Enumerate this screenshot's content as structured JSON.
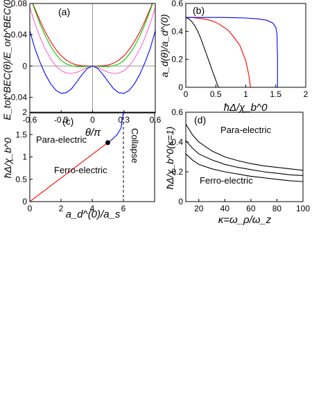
{
  "chart_data": [
    {
      "id": "a",
      "type": "line",
      "panel_label": "(a)",
      "xlabel": "θ/π",
      "ylabel": "E_tot^BEC(θ)/E_orb^BEC(0)",
      "xlim": [
        -0.6,
        0.6
      ],
      "ylim": [
        -0.06,
        0.08
      ],
      "x_ticks": [
        -0.6,
        -0.3,
        0,
        0.3,
        0.6
      ],
      "x_tick_labels": [
        "-0.6",
        "-0.3",
        "0",
        "0.3",
        "0.6"
      ],
      "y_ticks": [
        -0.04,
        0,
        0.04,
        0.08
      ],
      "y_tick_labels": [
        "-0.04",
        "0",
        "0.04",
        "0.08"
      ],
      "reference_lines": {
        "x": 0,
        "y": 0
      },
      "series": [
        {
          "color": "#ff0000",
          "x": [
            -0.6,
            -0.55,
            -0.5,
            -0.45,
            -0.4,
            -0.35,
            -0.3,
            -0.25,
            -0.2,
            -0.15,
            -0.1,
            -0.05,
            0,
            0.05,
            0.1,
            0.15,
            0.2,
            0.25,
            0.3,
            0.35,
            0.4,
            0.45,
            0.5,
            0.55,
            0.6
          ],
          "y": [
            0.09,
            0.073,
            0.057,
            0.043,
            0.031,
            0.021,
            0.013,
            0.0075,
            0.0035,
            0.0012,
            0.0003,
            5e-05,
            0,
            5e-05,
            0.0003,
            0.0012,
            0.0035,
            0.0075,
            0.013,
            0.021,
            0.031,
            0.043,
            0.057,
            0.073,
            0.09
          ]
        },
        {
          "color": "#00cc00",
          "x": [
            -0.6,
            -0.55,
            -0.5,
            -0.45,
            -0.4,
            -0.35,
            -0.3,
            -0.25,
            -0.2,
            -0.15,
            -0.1,
            -0.05,
            0,
            0.05,
            0.1,
            0.15,
            0.2,
            0.25,
            0.3,
            0.35,
            0.4,
            0.45,
            0.5,
            0.55,
            0.6
          ],
          "y": [
            0.09,
            0.071,
            0.053,
            0.038,
            0.025,
            0.015,
            0.007,
            0.0025,
            0.0003,
            -0.0008,
            -0.0009,
            -0.0003,
            0,
            -0.0003,
            -0.0009,
            -0.0008,
            0.0003,
            0.0025,
            0.007,
            0.015,
            0.025,
            0.038,
            0.053,
            0.071,
            0.09
          ]
        },
        {
          "color": "#ff66cc",
          "x": [
            -0.6,
            -0.55,
            -0.5,
            -0.45,
            -0.4,
            -0.35,
            -0.3,
            -0.25,
            -0.2,
            -0.15,
            -0.1,
            -0.05,
            0,
            0.05,
            0.1,
            0.15,
            0.2,
            0.25,
            0.3,
            0.35,
            0.4,
            0.45,
            0.5,
            0.55,
            0.6
          ],
          "y": [
            0.075,
            0.054,
            0.036,
            0.021,
            0.009,
            0.0,
            -0.006,
            -0.009,
            -0.0095,
            -0.008,
            -0.005,
            -0.0015,
            0,
            -0.0015,
            -0.005,
            -0.008,
            -0.0095,
            -0.009,
            -0.006,
            0.0,
            0.009,
            0.021,
            0.036,
            0.054,
            0.075
          ]
        },
        {
          "color": "#0000ff",
          "x": [
            -0.6,
            -0.55,
            -0.5,
            -0.45,
            -0.4,
            -0.35,
            -0.3,
            -0.25,
            -0.2,
            -0.15,
            -0.1,
            -0.05,
            0,
            0.05,
            0.1,
            0.15,
            0.2,
            0.25,
            0.3,
            0.35,
            0.4,
            0.45,
            0.5,
            0.55,
            0.6
          ],
          "y": [
            0.045,
            0.022,
            0.004,
            -0.011,
            -0.023,
            -0.031,
            -0.035,
            -0.034,
            -0.029,
            -0.02,
            -0.011,
            -0.003,
            0,
            -0.003,
            -0.011,
            -0.02,
            -0.029,
            -0.034,
            -0.035,
            -0.031,
            -0.023,
            -0.011,
            0.004,
            0.022,
            0.045
          ]
        }
      ]
    },
    {
      "id": "b",
      "type": "line",
      "panel_label": "(b)",
      "xlabel": "ħΔ/χ_b^0",
      "ylabel": "a_d(θ)/a_d^(0)",
      "xlim": [
        0,
        2
      ],
      "ylim": [
        0,
        0.6
      ],
      "x_ticks": [
        0,
        0.5,
        1,
        1.5,
        2
      ],
      "x_tick_labels": [
        "0",
        "0.5",
        "1",
        "1.5",
        "2"
      ],
      "y_ticks": [
        0,
        0.2,
        0.4,
        0.6
      ],
      "y_tick_labels": [
        "0",
        "0.2",
        "0.4",
        "0.6"
      ],
      "series": [
        {
          "color": "#000000",
          "x": [
            0,
            0.05,
            0.1,
            0.15,
            0.2,
            0.25,
            0.3,
            0.35,
            0.4,
            0.45,
            0.5,
            0.53,
            0.55,
            0.55
          ],
          "y": [
            0.5,
            0.49,
            0.47,
            0.44,
            0.4,
            0.35,
            0.29,
            0.23,
            0.17,
            0.11,
            0.05,
            0.015,
            0,
            0
          ]
        },
        {
          "color": "#ff0000",
          "x": [
            0,
            0.1,
            0.2,
            0.3,
            0.4,
            0.5,
            0.6,
            0.7,
            0.8,
            0.9,
            1.0,
            1.05,
            1.08
          ],
          "y": [
            0.5,
            0.5,
            0.495,
            0.49,
            0.48,
            0.465,
            0.44,
            0.41,
            0.36,
            0.3,
            0.19,
            0.09,
            0
          ]
        },
        {
          "color": "#0000ff",
          "x": [
            0,
            0.2,
            0.4,
            0.6,
            0.8,
            1.0,
            1.2,
            1.35,
            1.45,
            1.5,
            1.52,
            1.53,
            1.53
          ],
          "y": [
            0.5,
            0.5,
            0.5,
            0.5,
            0.498,
            0.496,
            0.49,
            0.48,
            0.46,
            0.43,
            0.38,
            0.2,
            0
          ]
        }
      ]
    },
    {
      "id": "c",
      "type": "line",
      "panel_label": "(c)",
      "xlabel": "a_d^(0)/a_s",
      "ylabel": "ħΔ/χ_b^0",
      "xlim": [
        0,
        8
      ],
      "ylim": [
        0,
        2
      ],
      "x_ticks": [
        0,
        2,
        4,
        6
      ],
      "x_tick_labels": [
        "0",
        "2",
        "4",
        "6"
      ],
      "y_ticks": [
        0,
        0.5,
        1,
        1.5,
        2
      ],
      "y_tick_labels": [
        "0",
        "0.5",
        "1",
        "1.5",
        "2"
      ],
      "annotations": [
        "Para-electric",
        "Ferro-electric",
        "Collapse"
      ],
      "critical_point": {
        "x": 5,
        "y": 1.32
      },
      "collapse_line_x": 6,
      "series": [
        {
          "color": "#ff0000",
          "x": [
            0,
            5
          ],
          "y": [
            0,
            1.32
          ]
        },
        {
          "color": "#0000ff",
          "x": [
            5,
            5.3,
            5.6,
            5.85,
            6.0
          ],
          "y": [
            1.32,
            1.4,
            1.5,
            1.65,
            2.0
          ]
        }
      ]
    },
    {
      "id": "d",
      "type": "line",
      "panel_label": "(d)",
      "xlabel": "κ=ω_ρ/ω_z",
      "ylabel": "ħΔ/χ_b^0(κ=1)",
      "xlim": [
        10,
        100
      ],
      "ylim": [
        0,
        0.6
      ],
      "x_ticks": [
        20,
        40,
        60,
        80,
        100
      ],
      "x_tick_labels": [
        "20",
        "40",
        "60",
        "80",
        "100"
      ],
      "y_ticks": [
        0,
        0.2,
        0.4,
        0.6
      ],
      "y_tick_labels": [
        "0",
        "0.2",
        "0.4",
        "0.6"
      ],
      "annotations": [
        "Para-electric",
        "Ferro-electric"
      ],
      "series": [
        {
          "color": "#000000",
          "x": [
            10,
            15,
            20,
            30,
            40,
            50,
            60,
            70,
            80,
            90,
            100
          ],
          "y": [
            0.52,
            0.45,
            0.4,
            0.34,
            0.3,
            0.275,
            0.255,
            0.24,
            0.23,
            0.22,
            0.21
          ]
        },
        {
          "color": "#000000",
          "x": [
            10,
            15,
            20,
            30,
            40,
            50,
            60,
            70,
            80,
            90,
            100
          ],
          "y": [
            0.41,
            0.36,
            0.32,
            0.28,
            0.25,
            0.23,
            0.215,
            0.2,
            0.19,
            0.18,
            0.175
          ]
        },
        {
          "color": "#000000",
          "x": [
            10,
            15,
            20,
            30,
            40,
            50,
            60,
            70,
            80,
            90,
            100
          ],
          "y": [
            0.32,
            0.28,
            0.25,
            0.22,
            0.2,
            0.185,
            0.17,
            0.16,
            0.15,
            0.14,
            0.135
          ]
        }
      ]
    }
  ]
}
